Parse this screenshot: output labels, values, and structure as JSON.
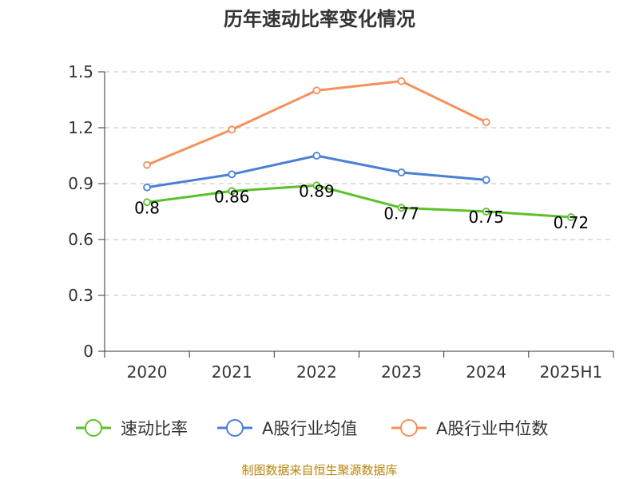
{
  "chart_data": {
    "type": "line",
    "title": "历年速动比率变化情况",
    "categories": [
      "2020",
      "2021",
      "2022",
      "2023",
      "2024",
      "2025H1"
    ],
    "y_ticks": [
      "0",
      "0.3",
      "0.6",
      "0.9",
      "1.2",
      "1.5"
    ],
    "ylim": [
      0,
      1.5
    ],
    "grid": true,
    "legend_position": "bottom",
    "series": [
      {
        "name": "速动比率",
        "color": "#5ac12b",
        "values": [
          0.8,
          0.86,
          0.89,
          0.77,
          0.75,
          0.72
        ],
        "labels": [
          "0.8",
          "0.86",
          "0.89",
          "0.77",
          "0.75",
          "0.72"
        ]
      },
      {
        "name": "A股行业均值",
        "color": "#4a7fd6",
        "values": [
          0.88,
          0.95,
          1.05,
          0.96,
          0.92,
          null
        ]
      },
      {
        "name": "A股行业中位数",
        "color": "#f5915a",
        "values": [
          1.0,
          1.19,
          1.4,
          1.45,
          1.23,
          null
        ]
      }
    ]
  },
  "source_note": "制图数据来自恒生聚源数据库"
}
